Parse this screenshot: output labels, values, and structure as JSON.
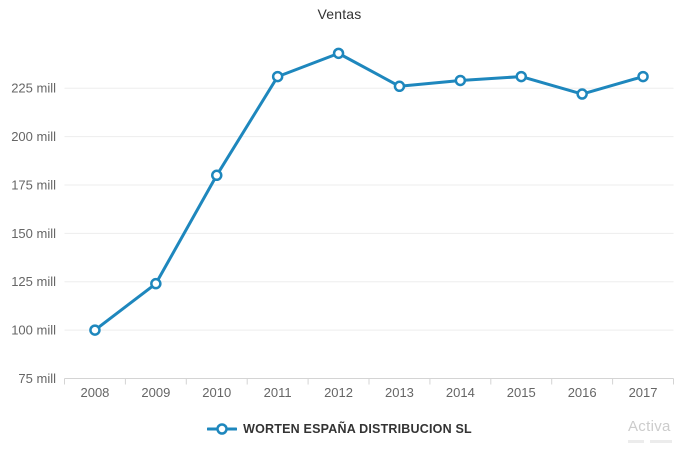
{
  "chart_data": {
    "type": "line",
    "title": "Ventas",
    "categories": [
      "2008",
      "2009",
      "2010",
      "2011",
      "2012",
      "2013",
      "2014",
      "2015",
      "2016",
      "2017"
    ],
    "series": [
      {
        "name": "WORTEN ESPAÑA DISTRIBUCION SL",
        "values": [
          100,
          124,
          180,
          231,
          243,
          226,
          229,
          231,
          222,
          231
        ]
      }
    ],
    "xlabel": "",
    "ylabel": "",
    "value_unit": "mill",
    "y_ticks": [
      75,
      100,
      125,
      150,
      175,
      200,
      225
    ],
    "y_tick_labels": [
      "75 mill",
      "100 mill",
      "125 mill",
      "150 mill",
      "175 mill",
      "200 mill",
      "225 mill"
    ],
    "ylim": [
      75,
      245
    ],
    "grid": "horizontal-only",
    "legend_position": "bottom-center"
  },
  "watermark": {
    "line1": "Activa"
  },
  "colors": {
    "series_line": "#1e87bd",
    "marker_fill": "#ffffff",
    "grid": "#ededed",
    "axis": "#d4d4d4",
    "tick_label": "#666666",
    "title_text": "#333333",
    "legend_text": "#333333",
    "watermark_text": "#cccccc"
  }
}
